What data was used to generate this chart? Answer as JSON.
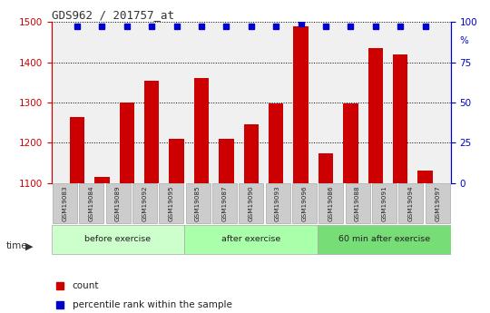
{
  "title": "GDS962 / 201757_at",
  "categories": [
    "GSM19083",
    "GSM19084",
    "GSM19089",
    "GSM19092",
    "GSM19095",
    "GSM19085",
    "GSM19087",
    "GSM19090",
    "GSM19093",
    "GSM19096",
    "GSM19086",
    "GSM19088",
    "GSM19091",
    "GSM19094",
    "GSM19097"
  ],
  "bar_values": [
    1265,
    1115,
    1300,
    1355,
    1210,
    1360,
    1210,
    1245,
    1298,
    1490,
    1175,
    1298,
    1435,
    1420,
    1130
  ],
  "percentile_values": [
    97,
    97,
    97,
    97,
    97,
    97,
    97,
    97,
    97,
    99,
    97,
    97,
    97,
    97,
    97
  ],
  "bar_color": "#cc0000",
  "percentile_color": "#0000cc",
  "ylim_left": [
    1100,
    1500
  ],
  "ylim_right": [
    0,
    100
  ],
  "yticks_left": [
    1100,
    1200,
    1300,
    1400,
    1500
  ],
  "yticks_right": [
    0,
    25,
    50,
    75,
    100
  ],
  "grid_color": "#000000",
  "background_color": "#ffffff",
  "groups": [
    {
      "label": "before exercise",
      "start": 0,
      "end": 5,
      "color": "#ccffcc"
    },
    {
      "label": "after exercise",
      "start": 5,
      "end": 10,
      "color": "#aaffaa"
    },
    {
      "label": "60 min after exercise",
      "start": 10,
      "end": 15,
      "color": "#77dd77"
    }
  ],
  "legend_count_label": "count",
  "legend_percentile_label": "percentile rank within the sample",
  "time_label": "time",
  "tick_bg_color": "#cccccc",
  "plot_area_bg": "#f0f0f0"
}
